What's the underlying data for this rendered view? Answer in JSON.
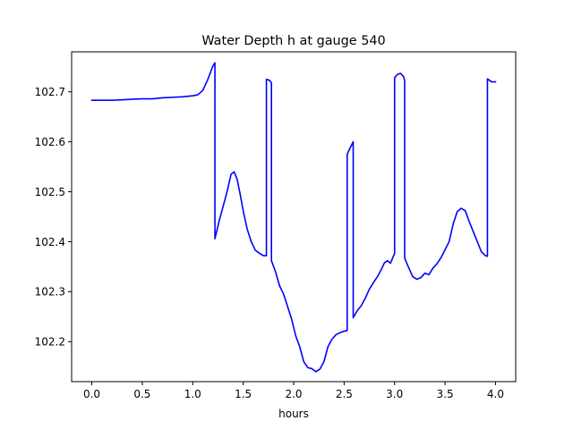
{
  "chart_data": {
    "type": "line",
    "title": "Water Depth h at gauge 540",
    "xlabel": "hours",
    "ylabel": "",
    "xlim": [
      -0.2,
      4.2
    ],
    "ylim": [
      102.12,
      102.78
    ],
    "xticks": [
      0.0,
      0.5,
      1.0,
      1.5,
      2.0,
      2.5,
      3.0,
      3.5,
      4.0
    ],
    "xtick_labels": [
      "0.0",
      "0.5",
      "1.0",
      "1.5",
      "2.0",
      "2.5",
      "3.0",
      "3.5",
      "4.0"
    ],
    "yticks": [
      102.2,
      102.3,
      102.4,
      102.5,
      102.6,
      102.7
    ],
    "ytick_labels": [
      "102.2",
      "102.3",
      "102.4",
      "102.5",
      "102.6",
      "102.7"
    ],
    "grid": false,
    "legend": "none",
    "series": [
      {
        "color": "#0000ff",
        "x": [
          0.0,
          0.1,
          0.2,
          0.3,
          0.4,
          0.5,
          0.6,
          0.7,
          0.8,
          0.9,
          1.0,
          1.05,
          1.1,
          1.15,
          1.2,
          1.22,
          1.22,
          1.26,
          1.3,
          1.34,
          1.38,
          1.41,
          1.44,
          1.47,
          1.5,
          1.54,
          1.58,
          1.62,
          1.66,
          1.7,
          1.73,
          1.73,
          1.76,
          1.78,
          1.78,
          1.82,
          1.86,
          1.9,
          1.94,
          1.98,
          2.02,
          2.06,
          2.1,
          2.14,
          2.18,
          2.22,
          2.26,
          2.3,
          2.34,
          2.38,
          2.42,
          2.46,
          2.5,
          2.53,
          2.53,
          2.56,
          2.59,
          2.59,
          2.63,
          2.67,
          2.71,
          2.75,
          2.79,
          2.83,
          2.87,
          2.9,
          2.93,
          2.96,
          2.99,
          3.0,
          3.0,
          3.03,
          3.06,
          3.09,
          3.1,
          3.1,
          3.14,
          3.18,
          3.22,
          3.26,
          3.3,
          3.34,
          3.38,
          3.42,
          3.46,
          3.5,
          3.54,
          3.58,
          3.62,
          3.66,
          3.7,
          3.74,
          3.78,
          3.82,
          3.86,
          3.9,
          3.92,
          3.92,
          3.96,
          4.0
        ],
        "y": [
          102.683,
          102.683,
          102.683,
          102.684,
          102.685,
          102.686,
          102.686,
          102.688,
          102.689,
          102.69,
          102.692,
          102.694,
          102.703,
          102.725,
          102.752,
          102.758,
          102.406,
          102.44,
          102.47,
          102.5,
          102.535,
          102.54,
          102.525,
          102.495,
          102.462,
          102.425,
          102.4,
          102.383,
          102.377,
          102.372,
          102.372,
          102.725,
          102.723,
          102.718,
          102.362,
          102.34,
          102.312,
          102.295,
          102.27,
          102.245,
          102.212,
          102.19,
          102.16,
          102.148,
          102.146,
          102.14,
          102.145,
          102.16,
          102.19,
          102.205,
          102.214,
          102.218,
          102.221,
          102.222,
          102.575,
          102.588,
          102.6,
          102.248,
          102.262,
          102.272,
          102.287,
          102.305,
          102.318,
          102.33,
          102.345,
          102.358,
          102.362,
          102.357,
          102.372,
          102.376,
          102.728,
          102.735,
          102.737,
          102.73,
          102.722,
          102.367,
          102.348,
          102.33,
          102.325,
          102.328,
          102.337,
          102.334,
          102.347,
          102.356,
          102.368,
          102.384,
          102.4,
          102.435,
          102.46,
          102.467,
          102.462,
          102.44,
          102.42,
          102.4,
          102.38,
          102.372,
          102.371,
          102.726,
          102.72,
          102.72
        ]
      }
    ]
  }
}
